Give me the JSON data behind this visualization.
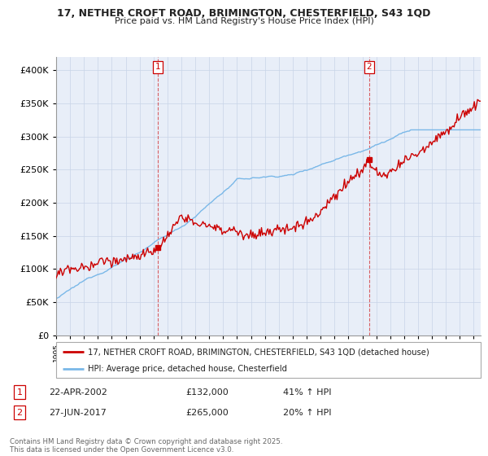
{
  "title": "17, NETHER CROFT ROAD, BRIMINGTON, CHESTERFIELD, S43 1QD",
  "subtitle": "Price paid vs. HM Land Registry's House Price Index (HPI)",
  "legend_line1": "17, NETHER CROFT ROAD, BRIMINGTON, CHESTERFIELD, S43 1QD (detached house)",
  "legend_line2": "HPI: Average price, detached house, Chesterfield",
  "annotation1_label": "1",
  "annotation1_date": "22-APR-2002",
  "annotation1_price": "£132,000",
  "annotation1_hpi": "41% ↑ HPI",
  "annotation2_label": "2",
  "annotation2_date": "27-JUN-2017",
  "annotation2_price": "£265,000",
  "annotation2_hpi": "20% ↑ HPI",
  "footer": "Contains HM Land Registry data © Crown copyright and database right 2025.\nThis data is licensed under the Open Government Licence v3.0.",
  "hpi_color": "#7ab8e8",
  "price_color": "#cc0000",
  "annotation_color": "#cc0000",
  "background_color": "#ffffff",
  "plot_bg_color": "#e8eef8",
  "ylim": [
    0,
    420000
  ],
  "yticks": [
    0,
    50000,
    100000,
    150000,
    200000,
    250000,
    300000,
    350000,
    400000
  ],
  "sale1_year": 2002.31,
  "sale1_price": 132000,
  "sale2_year": 2017.49,
  "sale2_price": 265000
}
